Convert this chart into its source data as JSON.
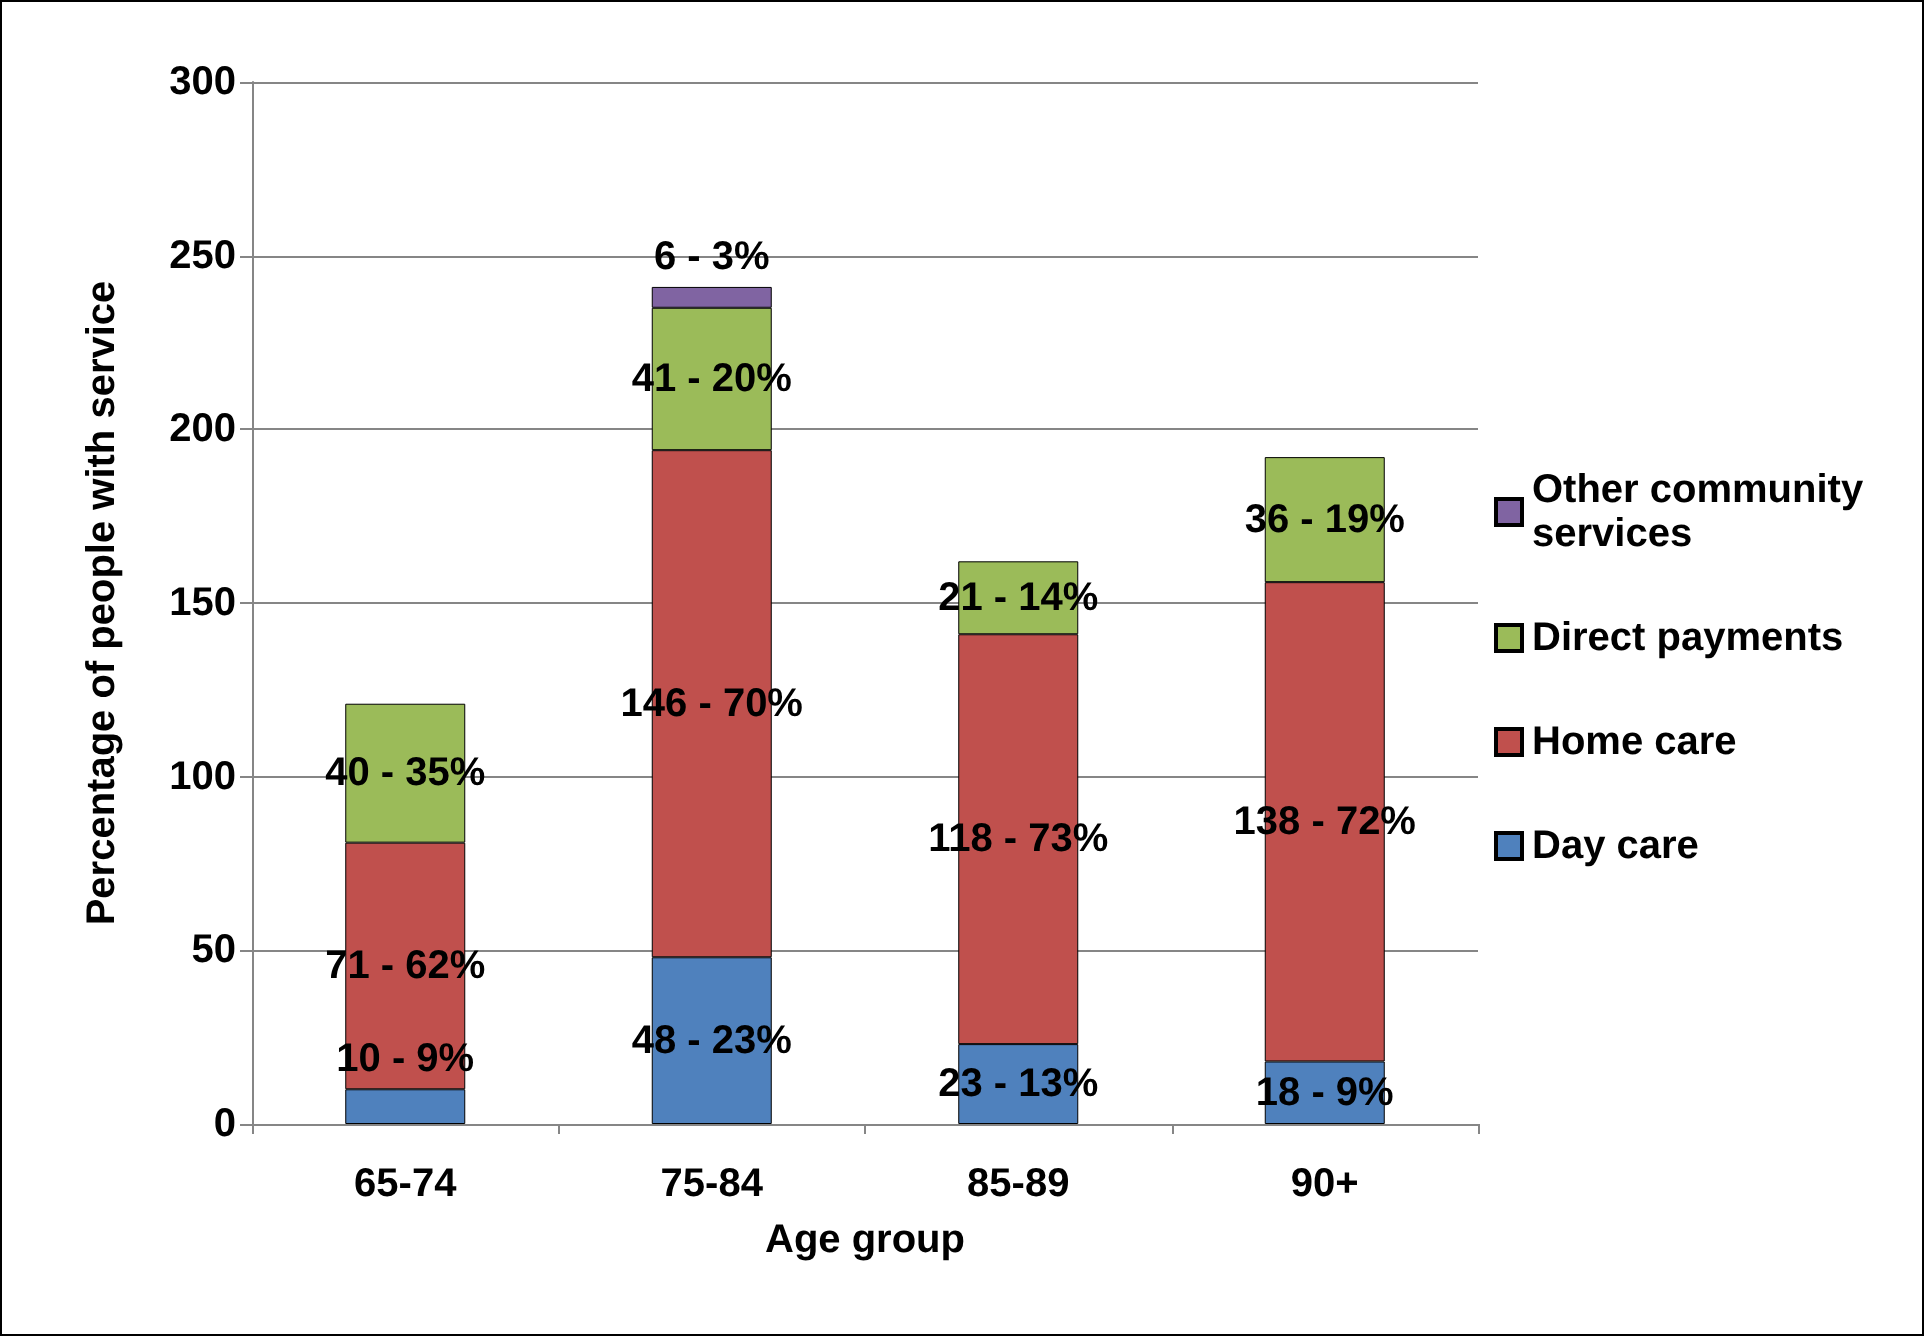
{
  "chart_data": {
    "type": "bar",
    "stacked": true,
    "xlabel": "Age group",
    "ylabel": "Percentage of people with service",
    "categories": [
      "65-74",
      "75-84",
      "85-89",
      "90+"
    ],
    "ylim": [
      0,
      300
    ],
    "yticks": [
      0,
      50,
      100,
      150,
      200,
      250,
      300
    ],
    "grid": "y",
    "legend": "right",
    "series": [
      {
        "name": "Day care",
        "color": "#4f81bd",
        "values": [
          10,
          48,
          23,
          18
        ],
        "value_labels": [
          "10 - 9%",
          "48 - 23%",
          "23 - 13%",
          "18 - 9%"
        ]
      },
      {
        "name": "Home care",
        "color": "#c0504d",
        "values": [
          71,
          146,
          118,
          138
        ],
        "value_labels": [
          "71 - 62%",
          "146 - 70%",
          "118 - 73%",
          "138 - 72%"
        ]
      },
      {
        "name": "Direct payments",
        "color": "#9bbb59",
        "values": [
          40,
          41,
          21,
          36
        ],
        "value_labels": [
          "40 - 35%",
          "41 - 20%",
          "21 - 14%",
          "36 - 19%"
        ]
      },
      {
        "name": "Other community services",
        "color": "#8064a2",
        "values": [
          null,
          6,
          null,
          null
        ],
        "value_labels": [
          null,
          "6 - 3%",
          null,
          null
        ]
      }
    ]
  }
}
